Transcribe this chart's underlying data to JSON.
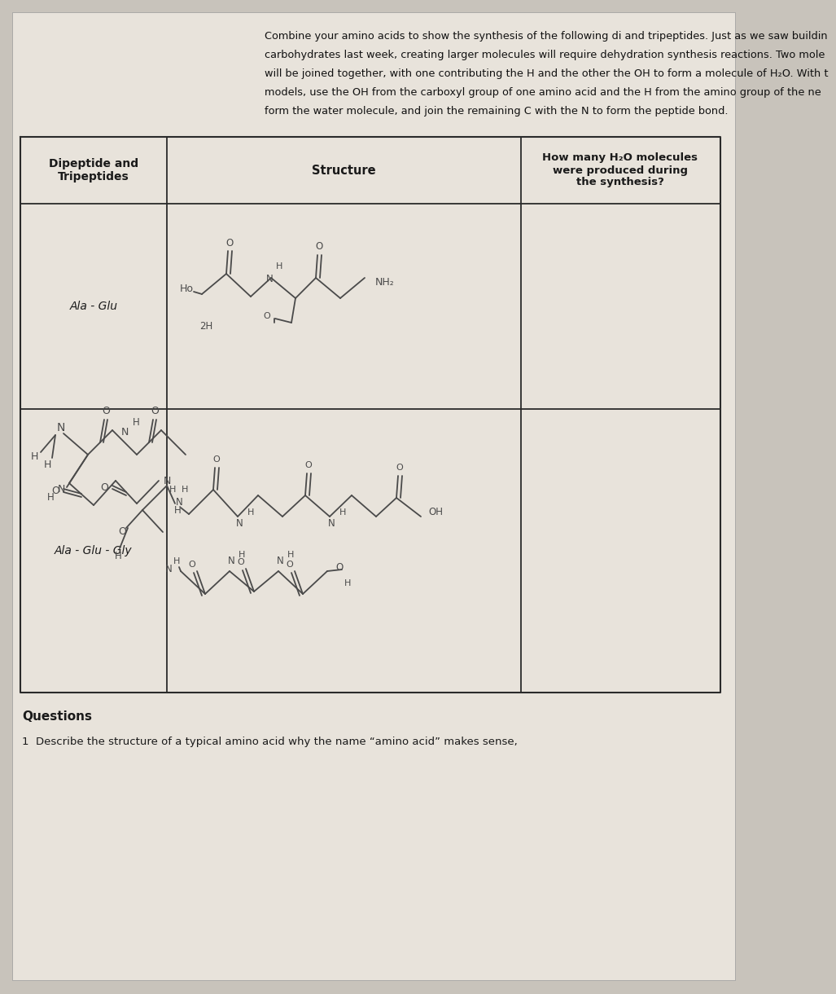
{
  "bg_color": "#c8c3bb",
  "paper_color": "#e8e3db",
  "text_color": "#1a1a1a",
  "line_color": "#3a3a3a",
  "pencil_color": "#4a4a4a",
  "intro_lines": [
    "Combine your amino acids to show the synthesis of the following di and tripeptides. Just as we saw buildin",
    "carbohydrates last week, creating larger molecules will require dehydration synthesis reactions. Two mole",
    "will be joined together, with one contributing the H and the other the OH to form a molecule of H₂O. With t",
    "models, use the OH from the carboxyl group of one amino acid and the H from the amino group of the ne",
    "form the water molecule, and join the remaining C with the N to form the peptide bond."
  ],
  "col1_header": "Dipeptide and\nTripeptides",
  "col2_header": "Structure",
  "col3_header": "How many H₂O molecules\nwere produced during\nthe synthesis?",
  "row1_label": "Ala - Glu",
  "row2_label": "Ala - Glu - Gly",
  "questions_label": "Questions",
  "question1": "1  Describe the structure of a typical amino acid why the name “amino acid” makes sense,"
}
